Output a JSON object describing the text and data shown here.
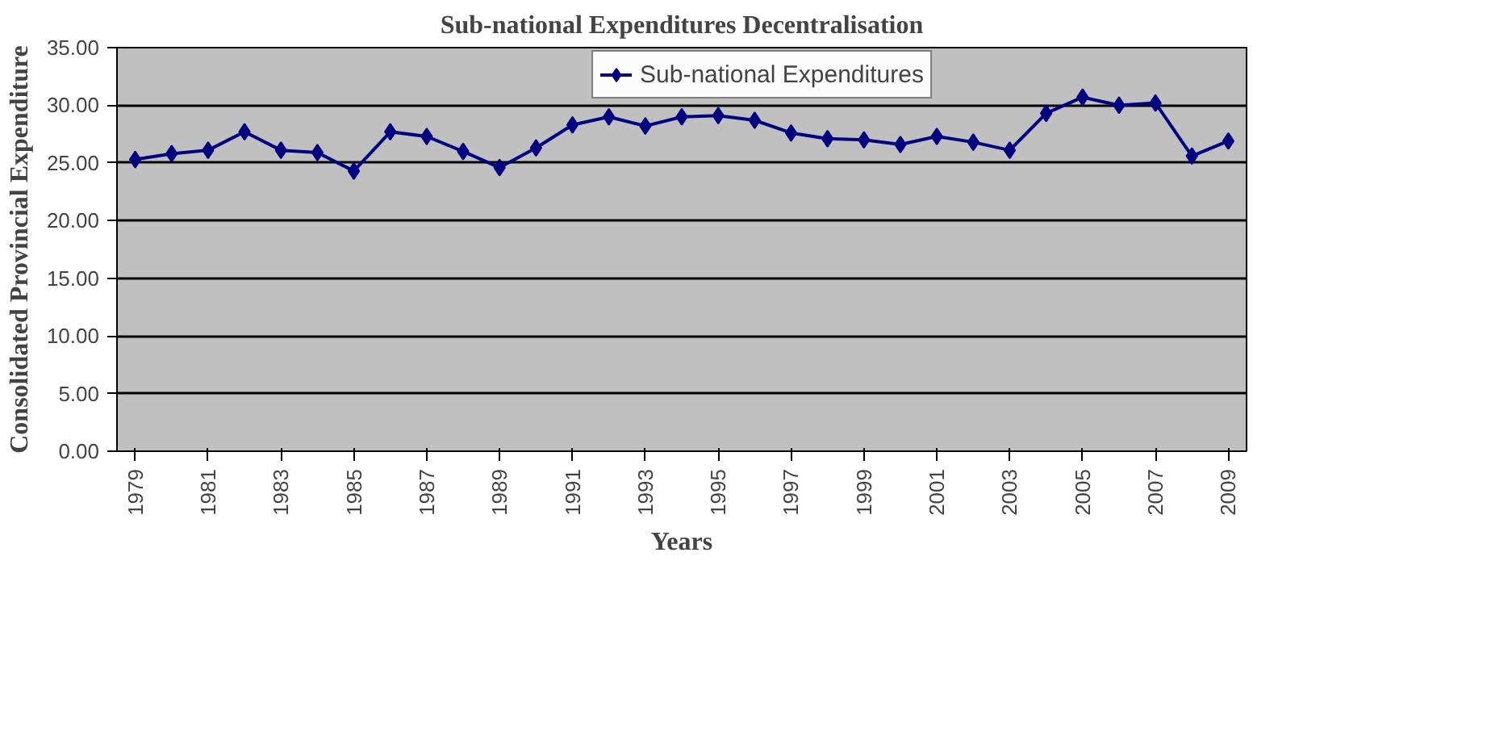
{
  "chart_data": {
    "type": "line",
    "title": "Sub-national Expenditures Decentralisation",
    "xlabel": "Years",
    "ylabel": "Consolidated Provincial Expenditure",
    "x": [
      1979,
      1980,
      1981,
      1982,
      1983,
      1984,
      1985,
      1986,
      1987,
      1988,
      1989,
      1990,
      1991,
      1992,
      1993,
      1994,
      1995,
      1996,
      1997,
      1998,
      1999,
      2000,
      2001,
      2002,
      2003,
      2004,
      2005,
      2006,
      2007,
      2008,
      2009
    ],
    "series": [
      {
        "name": "Sub-national Expenditures",
        "color": "#000080",
        "values": [
          25.3,
          25.8,
          26.1,
          27.7,
          26.1,
          25.9,
          24.3,
          27.7,
          27.3,
          26.0,
          24.6,
          26.3,
          28.3,
          29.0,
          28.2,
          29.0,
          29.1,
          28.7,
          27.6,
          27.1,
          27.0,
          26.6,
          27.3,
          26.8,
          26.1,
          29.3,
          30.7,
          30.0,
          30.2,
          25.6,
          26.9
        ]
      }
    ],
    "xlim": [
      1978.5,
      2009.5
    ],
    "xticks": [
      1979,
      1981,
      1983,
      1985,
      1987,
      1989,
      1991,
      1993,
      1995,
      1997,
      1999,
      2001,
      2003,
      2005,
      2007,
      2009
    ],
    "ylim": [
      0,
      35
    ],
    "yticks": [
      {
        "value": 0,
        "label": "0.00"
      },
      {
        "value": 5,
        "label": "5.00"
      },
      {
        "value": 10,
        "label": "10.00"
      },
      {
        "value": 15,
        "label": "15.00"
      },
      {
        "value": 20,
        "label": "20.00"
      },
      {
        "value": 25,
        "label": "25.00"
      },
      {
        "value": 30,
        "label": "30.00"
      },
      {
        "value": 35,
        "label": "35.00"
      }
    ],
    "grid": "y",
    "legend": "top",
    "marker": "diamond",
    "line_style": "solid"
  }
}
